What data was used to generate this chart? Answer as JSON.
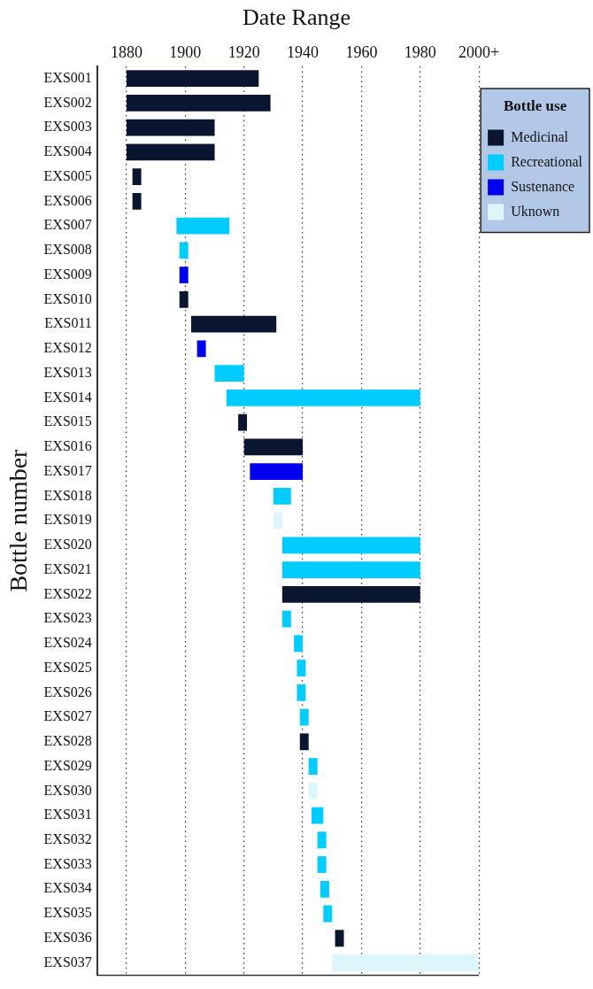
{
  "chart_data": {
    "type": "bar",
    "orientation": "horizontal",
    "title": "Date Range",
    "ylabel": "Bottle number",
    "legend_title": "Bottle use",
    "categories": [
      "EXS001",
      "EXS002",
      "EXS003",
      "EXS004",
      "EXS005",
      "EXS006",
      "EXS007",
      "EXS008",
      "EXS009",
      "EXS010",
      "EXS011",
      "EXS012",
      "EXS013",
      "EXS014",
      "EXS015",
      "EXS016",
      "EXS017",
      "EXS018",
      "EXS019",
      "EXS020",
      "EXS021",
      "EXS022",
      "EXS023",
      "EXS024",
      "EXS025",
      "EXS026",
      "EXS027",
      "EXS028",
      "EXS029",
      "EXS030",
      "EXS031",
      "EXS032",
      "EXS033",
      "EXS034",
      "EXS035",
      "EXS036",
      "EXS037"
    ],
    "series": [
      {
        "name": "Medicinal",
        "color": "#0a1630",
        "base": [
          1880,
          1880,
          1880,
          1880,
          1882,
          1882,
          null,
          null,
          null,
          1898,
          1902,
          null,
          null,
          null,
          1918,
          1920,
          null,
          null,
          null,
          null,
          null,
          1933,
          null,
          null,
          null,
          null,
          null,
          1939,
          null,
          null,
          null,
          null,
          null,
          null,
          null,
          1951,
          null
        ],
        "values": [
          45,
          49,
          30,
          30,
          3,
          3,
          null,
          null,
          null,
          3,
          29,
          null,
          null,
          null,
          3,
          20,
          null,
          null,
          null,
          null,
          null,
          47,
          null,
          null,
          null,
          null,
          null,
          3,
          null,
          null,
          null,
          null,
          null,
          null,
          null,
          3,
          null
        ]
      },
      {
        "name": "Recreational",
        "color": "#00ccff",
        "base": [
          null,
          null,
          null,
          null,
          null,
          null,
          1897,
          1898,
          null,
          null,
          null,
          null,
          1910,
          1914,
          null,
          null,
          null,
          1930,
          null,
          1933,
          1933,
          null,
          1933,
          1937,
          1938,
          1938,
          1939,
          null,
          1942,
          null,
          1943,
          1945,
          1945,
          1946,
          1947,
          null,
          null
        ],
        "values": [
          null,
          null,
          null,
          null,
          null,
          null,
          18,
          3,
          null,
          null,
          null,
          null,
          10,
          66,
          null,
          null,
          null,
          6,
          null,
          47,
          47,
          null,
          3,
          3,
          3,
          3,
          3,
          null,
          3,
          null,
          4,
          3,
          3,
          3,
          3,
          null,
          null
        ]
      },
      {
        "name": "Sustenance",
        "color": "#0000ee",
        "base": [
          null,
          null,
          null,
          null,
          null,
          null,
          null,
          null,
          1898,
          null,
          null,
          1904,
          null,
          null,
          null,
          null,
          1922,
          null,
          null,
          null,
          null,
          null,
          null,
          null,
          null,
          null,
          null,
          null,
          null,
          null,
          null,
          null,
          null,
          null,
          null,
          null,
          null
        ],
        "values": [
          null,
          null,
          null,
          null,
          null,
          null,
          null,
          null,
          3,
          null,
          null,
          3,
          null,
          null,
          null,
          null,
          18,
          null,
          null,
          null,
          null,
          null,
          null,
          null,
          null,
          null,
          null,
          null,
          null,
          null,
          null,
          null,
          null,
          null,
          null,
          null,
          null
        ]
      },
      {
        "name": "Uknown",
        "color": "#ddf6fb",
        "base": [
          null,
          null,
          null,
          null,
          null,
          null,
          null,
          null,
          null,
          null,
          null,
          null,
          null,
          null,
          null,
          null,
          null,
          null,
          1930,
          null,
          null,
          null,
          null,
          null,
          null,
          null,
          null,
          null,
          null,
          1942,
          null,
          null,
          null,
          null,
          null,
          null,
          1950
        ],
        "values": [
          null,
          null,
          null,
          null,
          null,
          null,
          null,
          null,
          null,
          null,
          null,
          null,
          null,
          null,
          null,
          null,
          null,
          null,
          3,
          null,
          null,
          null,
          null,
          null,
          null,
          null,
          null,
          null,
          null,
          3,
          null,
          null,
          null,
          null,
          null,
          null,
          50
        ]
      }
    ],
    "xlim": [
      1870,
      2000
    ],
    "xticks": [
      1880,
      1900,
      1920,
      1940,
      1960,
      1980,
      {
        "value": 2000,
        "label": "2000+"
      }
    ],
    "grid": "x",
    "legend": "right"
  }
}
